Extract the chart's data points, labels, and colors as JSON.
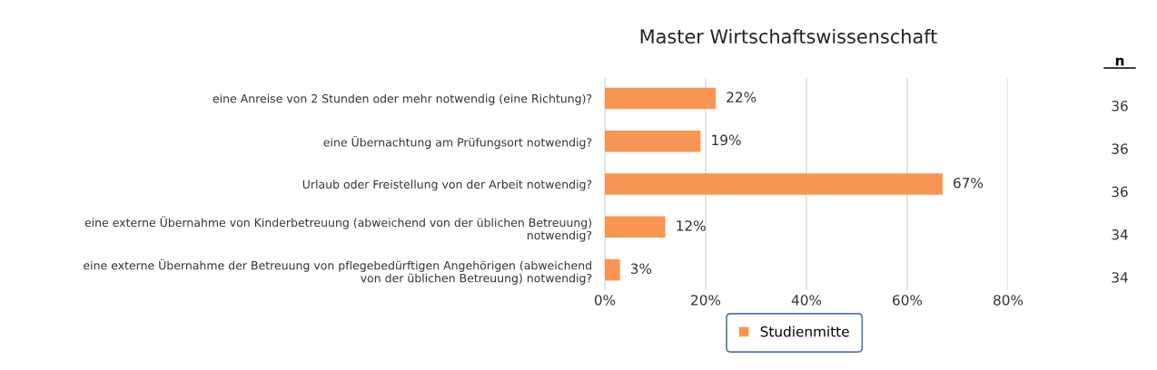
{
  "chart_data": {
    "type": "bar",
    "orientation": "horizontal",
    "title": "Master Wirtschaftswissenschaft",
    "categories": [
      "eine Anreise von 2 Stunden oder mehr notwendig (eine Richtung)?",
      "eine Übernachtung am Prüfungsort notwendig?",
      "Urlaub oder Freistellung von der Arbeit notwendig?",
      "eine externe Übernahme von Kinderbetreuung (abweichend von der üblichen Betreuung)\nnotwendig?",
      "eine externe Übernahme der Betreuung von pflegebedürftigen Angehörigen (abweichend\nvon der üblichen Betreuung) notwendig?"
    ],
    "series": [
      {
        "name": "Studienmitte",
        "color": "#f79554",
        "values": [
          22,
          19,
          67,
          12,
          3
        ],
        "value_labels": [
          "22%",
          "19%",
          "67%",
          "12%",
          "3%"
        ]
      }
    ],
    "xlim": [
      0,
      80
    ],
    "xticks": [
      {
        "value": 0,
        "label": "0%"
      },
      {
        "value": 20,
        "label": "20%"
      },
      {
        "value": 40,
        "label": "40%"
      },
      {
        "value": 60,
        "label": "60%"
      },
      {
        "value": 80,
        "label": "80%"
      }
    ],
    "grid": "x",
    "legend": "bottom",
    "annotations": [
      "n",
      "36",
      "36",
      "36",
      "34",
      "34"
    ]
  }
}
